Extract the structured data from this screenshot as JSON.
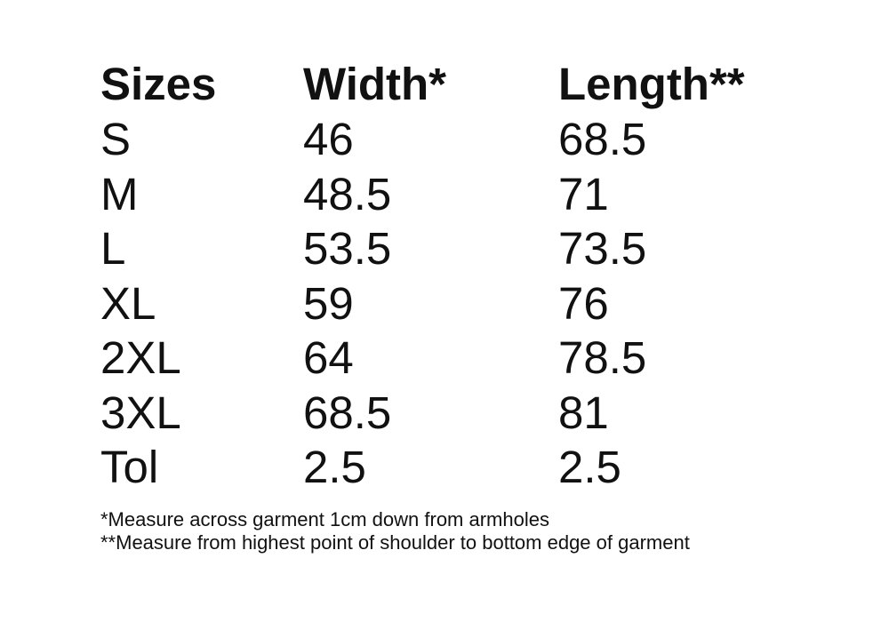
{
  "table": {
    "header": [
      "Sizes",
      "Width*",
      "Length**"
    ],
    "rows": [
      [
        "S",
        "46",
        "68.5"
      ],
      [
        "M",
        "48.5",
        "71"
      ],
      [
        "L",
        "53.5",
        "73.5"
      ],
      [
        "XL",
        "59",
        "76"
      ],
      [
        "2XL",
        "64",
        "78.5"
      ],
      [
        "3XL",
        "68.5",
        "81"
      ],
      [
        "Tol",
        "2.5",
        "2.5"
      ]
    ]
  },
  "notes": [
    "*Measure across garment 1cm down from armholes",
    "**Measure from highest point of shoulder to bottom edge of garment"
  ]
}
